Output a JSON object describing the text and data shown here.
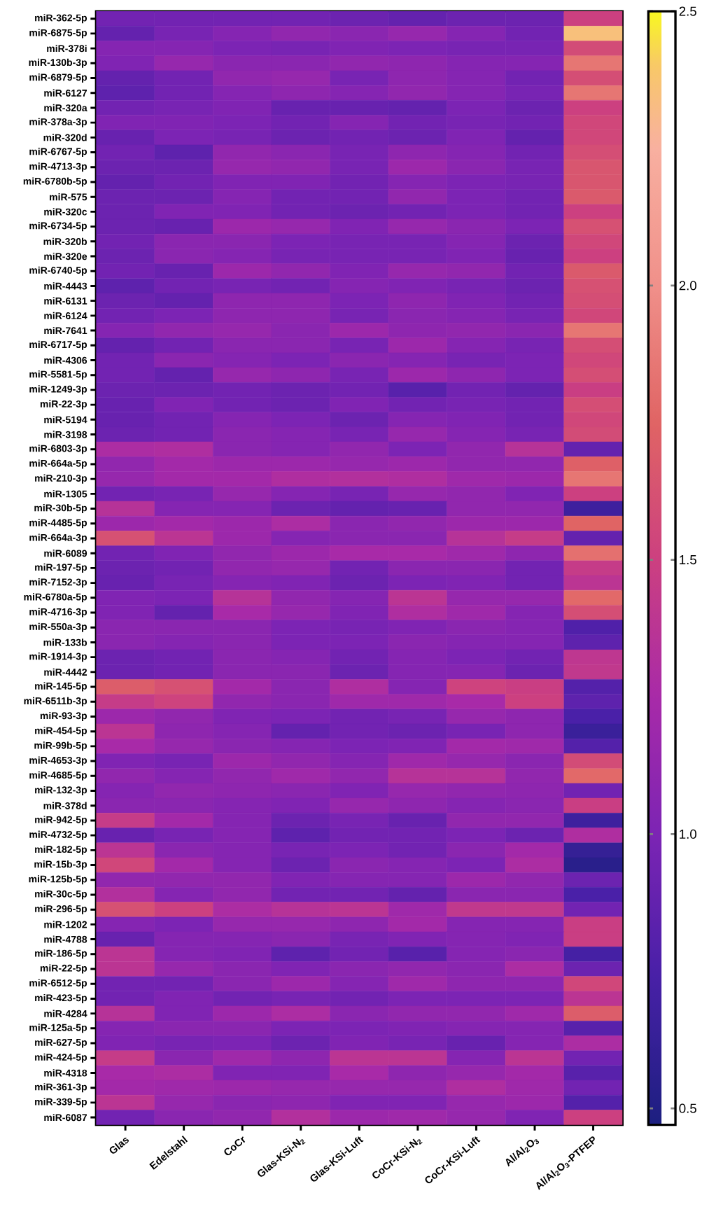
{
  "chart_data": {
    "type": "heatmap",
    "categories": [
      "Glas",
      "Edelstahl",
      "CoCr",
      "Glas-KSi-N$_{2}$",
      "Glas-KSi-Luft",
      "CoCr-KSi-N$_{2}$",
      "CoCr-KSi-Luft",
      "Al/Al$_{2}$O$_{3}$",
      "Al/Al$_{2}$O$_{3}$-PTFEP"
    ],
    "y_categories": [
      "miR-362-5p",
      "miR-6875-5p",
      "miR-378i",
      "miR-130b-3p",
      "miR-6879-5p",
      "miR-6127",
      "miR-320a",
      "miR-378a-3p",
      "miR-320d",
      "miR-6767-5p",
      "miR-4713-3p",
      "miR-6780b-5p",
      "miR-575",
      "miR-320c",
      "miR-6734-5p",
      "miR-320b",
      "miR-320e",
      "miR-6740-5p",
      "miR-4443",
      "miR-6131",
      "miR-6124",
      "miR-7641",
      "miR-6717-5p",
      "miR-4306",
      "miR-5581-5p",
      "miR-1249-3p",
      "miR-22-3p",
      "miR-5194",
      "miR-3198",
      "miR-6803-3p",
      "miR-664a-5p",
      "miR-210-3p",
      "miR-1305",
      "miR-30b-5p",
      "miR-4485-5p",
      "miR-664a-3p",
      "miR-6089",
      "miR-197-5p",
      "miR-7152-3p",
      "miR-6780a-5p",
      "miR-4716-3p",
      "miR-550a-3p",
      "miR-133b",
      "miR-1914-3p",
      "miR-4442",
      "miR-145-5p",
      "miR-6511b-3p",
      "miR-93-3p",
      "miR-454-5p",
      "miR-99b-5p",
      "miR-4653-3p",
      "miR-4685-5p",
      "miR-132-3p",
      "miR-378d",
      "miR-942-5p",
      "miR-4732-5p",
      "miR-182-5p",
      "miR-15b-3p",
      "miR-125b-5p",
      "miR-30c-5p",
      "miR-296-5p",
      "miR-1202",
      "miR-4788",
      "miR-186-5p",
      "miR-22-5p",
      "miR-6512-5p",
      "miR-423-5p",
      "miR-4284",
      "miR-125a-5p",
      "miR-627-5p",
      "miR-424-5p",
      "miR-4318",
      "miR-361-3p",
      "miR-339-5p",
      "miR-6087"
    ],
    "cells": [
      [
        0.95,
        0.95,
        0.95,
        0.95,
        0.92,
        0.88,
        0.92,
        0.92,
        1.5
      ],
      [
        0.88,
        0.98,
        1.05,
        1.12,
        1.08,
        1.15,
        1.05,
        0.95,
        2.35
      ],
      [
        1.05,
        1.05,
        1.0,
        0.98,
        1.02,
        1.0,
        0.98,
        0.98,
        1.58
      ],
      [
        1.02,
        1.15,
        1.08,
        1.08,
        1.12,
        1.1,
        1.05,
        1.05,
        1.85
      ],
      [
        0.88,
        0.95,
        1.12,
        1.15,
        0.98,
        1.1,
        1.05,
        0.95,
        1.6
      ],
      [
        0.85,
        0.95,
        1.05,
        1.1,
        1.05,
        1.12,
        1.05,
        0.98,
        1.85
      ],
      [
        0.95,
        0.98,
        1.02,
        0.9,
        0.9,
        0.88,
        1.0,
        0.92,
        1.5
      ],
      [
        1.02,
        1.02,
        1.0,
        0.95,
        1.05,
        0.95,
        0.98,
        0.95,
        1.55
      ],
      [
        0.9,
        1.0,
        0.98,
        0.92,
        0.95,
        0.92,
        1.02,
        0.88,
        1.55
      ],
      [
        0.95,
        0.85,
        1.12,
        1.08,
        0.98,
        1.1,
        1.05,
        0.95,
        1.6
      ],
      [
        0.92,
        0.92,
        1.15,
        1.12,
        0.98,
        1.18,
        1.08,
        0.98,
        1.65
      ],
      [
        0.88,
        0.95,
        1.02,
        1.02,
        0.95,
        1.05,
        1.0,
        0.98,
        1.65
      ],
      [
        0.92,
        0.92,
        1.05,
        0.95,
        0.95,
        1.12,
        1.0,
        0.95,
        1.68
      ],
      [
        0.92,
        1.02,
        1.02,
        0.95,
        0.92,
        0.95,
        1.0,
        0.95,
        1.5
      ],
      [
        0.92,
        0.9,
        1.18,
        1.15,
        1.02,
        1.15,
        1.08,
        1.0,
        1.62
      ],
      [
        0.95,
        1.08,
        1.08,
        1.0,
        0.98,
        0.98,
        1.05,
        0.92,
        1.55
      ],
      [
        0.92,
        1.08,
        1.05,
        0.98,
        0.98,
        0.98,
        1.02,
        0.9,
        1.5
      ],
      [
        0.95,
        0.9,
        1.18,
        1.12,
        1.02,
        1.15,
        1.12,
        0.95,
        1.68
      ],
      [
        0.85,
        0.95,
        0.98,
        0.95,
        1.05,
        1.02,
        0.98,
        0.92,
        1.62
      ],
      [
        0.92,
        0.88,
        1.1,
        1.1,
        1.0,
        1.1,
        1.02,
        0.95,
        1.6
      ],
      [
        0.95,
        1.0,
        1.1,
        1.1,
        0.98,
        1.08,
        1.05,
        0.98,
        1.55
      ],
      [
        1.05,
        1.12,
        1.15,
        1.08,
        1.18,
        1.1,
        1.12,
        1.08,
        1.85
      ],
      [
        0.88,
        0.95,
        1.08,
        1.08,
        0.98,
        1.18,
        1.05,
        0.98,
        1.6
      ],
      [
        0.95,
        1.08,
        1.05,
        1.0,
        1.08,
        1.05,
        0.98,
        1.0,
        1.55
      ],
      [
        0.95,
        0.88,
        1.15,
        1.1,
        0.98,
        1.18,
        1.1,
        1.0,
        1.6
      ],
      [
        0.92,
        0.92,
        0.95,
        0.92,
        0.95,
        0.82,
        0.95,
        0.88,
        1.48
      ],
      [
        0.9,
        1.02,
        0.95,
        0.92,
        1.02,
        0.95,
        0.98,
        0.95,
        1.6
      ],
      [
        0.9,
        0.95,
        1.05,
        1.0,
        0.92,
        1.05,
        1.02,
        0.95,
        1.55
      ],
      [
        0.92,
        0.95,
        1.08,
        1.05,
        0.98,
        1.15,
        1.05,
        0.98,
        1.58
      ],
      [
        1.28,
        1.3,
        1.08,
        1.05,
        1.12,
        1.0,
        1.12,
        1.35,
        0.88
      ],
      [
        1.12,
        1.22,
        1.18,
        1.18,
        1.15,
        1.18,
        1.12,
        1.12,
        1.72
      ],
      [
        1.15,
        1.22,
        1.22,
        1.3,
        1.32,
        1.3,
        1.2,
        1.18,
        1.85
      ],
      [
        0.95,
        0.98,
        1.15,
        1.05,
        0.98,
        1.15,
        1.12,
        1.02,
        1.5
      ],
      [
        1.35,
        1.05,
        1.05,
        0.92,
        0.88,
        0.9,
        1.12,
        1.12,
        0.68
      ],
      [
        1.18,
        1.22,
        1.18,
        1.28,
        1.08,
        1.12,
        1.18,
        1.18,
        1.75
      ],
      [
        1.62,
        1.38,
        1.18,
        1.05,
        1.08,
        1.08,
        1.35,
        1.45,
        0.88
      ],
      [
        0.95,
        1.02,
        1.12,
        1.18,
        1.25,
        1.25,
        1.2,
        1.1,
        1.82
      ],
      [
        0.92,
        0.95,
        1.12,
        1.15,
        0.95,
        1.08,
        1.08,
        0.95,
        1.45
      ],
      [
        0.9,
        0.98,
        1.05,
        1.02,
        0.92,
        1.0,
        1.02,
        0.95,
        1.38
      ],
      [
        1.02,
        1.0,
        1.35,
        1.12,
        1.05,
        1.38,
        1.15,
        1.15,
        1.78
      ],
      [
        1.02,
        0.88,
        1.25,
        1.15,
        1.02,
        1.3,
        1.2,
        1.05,
        1.6
      ],
      [
        1.08,
        1.08,
        1.08,
        1.0,
        0.98,
        1.02,
        1.08,
        1.05,
        0.78
      ],
      [
        1.08,
        1.05,
        1.08,
        1.0,
        1.0,
        1.08,
        1.05,
        1.05,
        0.85
      ],
      [
        0.92,
        0.95,
        1.08,
        1.05,
        0.95,
        1.05,
        1.0,
        0.95,
        1.4
      ],
      [
        0.92,
        0.95,
        1.08,
        1.08,
        0.92,
        1.05,
        1.05,
        0.92,
        1.42
      ],
      [
        1.7,
        1.62,
        1.22,
        1.08,
        1.3,
        1.05,
        1.52,
        1.48,
        0.8
      ],
      [
        1.45,
        1.52,
        1.12,
        1.08,
        1.2,
        1.2,
        1.25,
        1.5,
        0.85
      ],
      [
        1.18,
        1.12,
        1.02,
        1.0,
        0.95,
        0.98,
        1.15,
        1.1,
        0.75
      ],
      [
        1.38,
        1.1,
        1.05,
        0.88,
        0.95,
        0.92,
        0.98,
        1.1,
        0.65
      ],
      [
        1.25,
        1.15,
        1.08,
        1.05,
        1.0,
        1.02,
        1.22,
        1.2,
        0.8
      ],
      [
        1.02,
        0.98,
        1.18,
        1.12,
        1.05,
        1.2,
        1.15,
        1.08,
        1.58
      ],
      [
        1.12,
        1.05,
        1.12,
        1.2,
        1.12,
        1.35,
        1.35,
        1.12,
        1.78
      ],
      [
        1.05,
        1.12,
        1.1,
        1.08,
        1.02,
        1.15,
        1.12,
        1.1,
        0.95
      ],
      [
        1.08,
        1.08,
        1.05,
        1.02,
        1.15,
        1.1,
        1.05,
        1.08,
        1.48
      ],
      [
        1.45,
        1.22,
        1.05,
        0.92,
        0.98,
        0.9,
        1.12,
        1.12,
        0.68
      ],
      [
        0.9,
        0.98,
        1.05,
        0.85,
        0.95,
        0.95,
        1.0,
        0.92,
        1.3
      ],
      [
        1.38,
        1.08,
        1.05,
        0.98,
        1.0,
        0.95,
        1.08,
        1.22,
        0.62
      ],
      [
        1.55,
        1.22,
        1.05,
        0.92,
        1.08,
        1.05,
        1.0,
        1.28,
        0.55
      ],
      [
        1.12,
        1.12,
        1.12,
        1.02,
        1.05,
        1.05,
        1.18,
        1.12,
        0.92
      ],
      [
        1.32,
        1.05,
        1.12,
        0.95,
        0.95,
        0.88,
        1.08,
        1.08,
        0.75
      ],
      [
        1.62,
        1.5,
        1.28,
        1.35,
        1.38,
        1.2,
        1.42,
        1.42,
        0.95
      ],
      [
        1.05,
        1.0,
        1.15,
        1.15,
        1.1,
        1.22,
        1.05,
        1.05,
        1.48
      ],
      [
        0.9,
        1.05,
        1.05,
        1.08,
        0.98,
        1.02,
        1.05,
        1.02,
        1.48
      ],
      [
        1.38,
        1.05,
        1.02,
        0.85,
        0.95,
        0.82,
        1.05,
        1.08,
        0.72
      ],
      [
        1.38,
        1.15,
        1.08,
        1.02,
        1.08,
        1.12,
        1.08,
        1.28,
        0.92
      ],
      [
        0.95,
        0.95,
        1.08,
        1.18,
        1.05,
        1.2,
        1.1,
        1.1,
        1.55
      ],
      [
        0.95,
        1.02,
        0.95,
        0.98,
        0.95,
        1.0,
        1.0,
        1.0,
        1.38
      ],
      [
        1.35,
        1.02,
        1.18,
        1.28,
        1.08,
        1.12,
        1.12,
        1.2,
        1.7
      ],
      [
        1.05,
        1.08,
        1.08,
        1.0,
        1.0,
        1.02,
        1.05,
        1.05,
        0.82
      ],
      [
        1.02,
        0.98,
        1.0,
        0.92,
        1.02,
        0.98,
        0.9,
        1.05,
        1.28
      ],
      [
        1.45,
        1.08,
        1.2,
        1.1,
        1.38,
        1.38,
        1.05,
        1.38,
        0.95
      ],
      [
        1.25,
        1.28,
        1.02,
        1.02,
        1.25,
        1.1,
        1.15,
        1.22,
        0.82
      ],
      [
        1.22,
        1.2,
        1.18,
        1.15,
        1.15,
        1.15,
        1.3,
        1.2,
        0.95
      ],
      [
        1.38,
        1.15,
        1.08,
        1.1,
        1.02,
        1.02,
        1.15,
        1.18,
        0.8
      ],
      [
        0.95,
        1.08,
        1.12,
        1.32,
        1.18,
        1.2,
        1.15,
        1.02,
        1.5
      ]
    ],
    "clim": [
      0.47,
      2.5
    ],
    "cticks": [
      0.5,
      {
        "value": 1.0,
        "label": "1.0"
      },
      1.5,
      {
        "value": 2.0,
        "label": "2.0"
      },
      2.5
    ]
  }
}
